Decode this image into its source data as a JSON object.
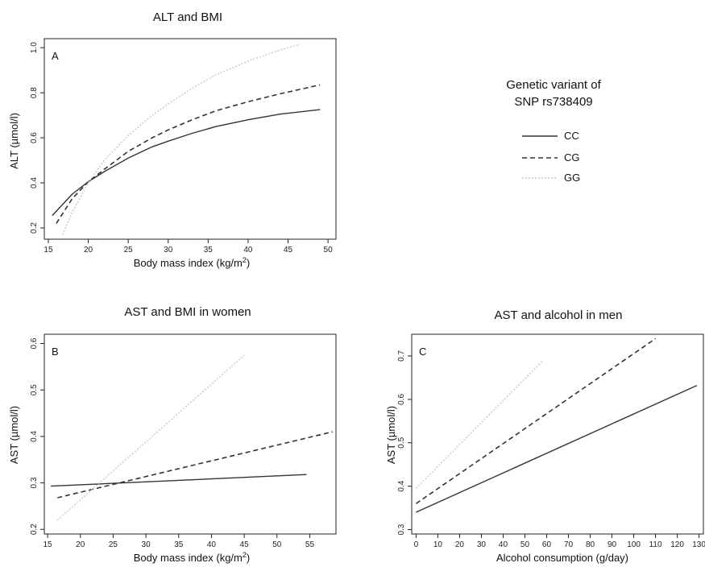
{
  "legend": {
    "title_line1": "Genetic variant of",
    "title_line2": "SNP rs738409",
    "entries": [
      {
        "label": "CC",
        "color": "#333333",
        "dash": "solid",
        "width": 1.4
      },
      {
        "label": "CG",
        "color": "#333333",
        "dash": "dashed",
        "width": 1.6
      },
      {
        "label": "GG",
        "color": "#c8c8c8",
        "dash": "dotted",
        "width": 1.4
      }
    ]
  },
  "chart_data": [
    {
      "type": "line",
      "panel_label": "A",
      "title": "ALT and BMI",
      "xlabel": "Body mass index (kg/m",
      "xlabel_sup": "2",
      "xlabel_tail": ")",
      "ylabel": "ALT (µmol/l)",
      "xlim": [
        14.5,
        51
      ],
      "ylim": [
        0.15,
        1.04
      ],
      "xticks": [
        15,
        20,
        25,
        30,
        35,
        40,
        45,
        50
      ],
      "yticks": [
        0.2,
        0.4,
        0.6,
        0.8,
        1.0
      ],
      "ytick_labels": [
        "0.2",
        "0.4",
        "0.6",
        "0.8",
        "1.0"
      ],
      "series": [
        {
          "name": "CC",
          "x": [
            15.5,
            18,
            20,
            22,
            25,
            28,
            30,
            33,
            36,
            40,
            44,
            49
          ],
          "y": [
            0.255,
            0.35,
            0.405,
            0.45,
            0.51,
            0.56,
            0.585,
            0.62,
            0.65,
            0.68,
            0.705,
            0.725
          ]
        },
        {
          "name": "CG",
          "x": [
            16,
            18,
            20,
            22,
            25,
            28,
            30,
            33,
            36,
            40,
            44,
            49
          ],
          "y": [
            0.22,
            0.33,
            0.405,
            0.46,
            0.54,
            0.6,
            0.635,
            0.68,
            0.72,
            0.76,
            0.795,
            0.835
          ]
        },
        {
          "name": "GG",
          "x": [
            16.8,
            18,
            20,
            22,
            25,
            28,
            30,
            33,
            36,
            40,
            44,
            46.5
          ],
          "y": [
            0.17,
            0.27,
            0.4,
            0.5,
            0.61,
            0.7,
            0.75,
            0.82,
            0.88,
            0.94,
            0.99,
            1.015
          ]
        }
      ]
    },
    {
      "type": "line",
      "panel_label": "B",
      "title": "AST and BMI in women",
      "xlabel": "Body mass index (kg/m",
      "xlabel_sup": "2",
      "xlabel_tail": ")",
      "ylabel": "AST (µmol/l)",
      "xlim": [
        14.5,
        59
      ],
      "ylim": [
        0.19,
        0.62
      ],
      "xticks": [
        15,
        20,
        25,
        30,
        35,
        40,
        45,
        50,
        55
      ],
      "yticks": [
        0.2,
        0.3,
        0.4,
        0.5,
        0.6
      ],
      "ytick_labels": [
        "0.2",
        "0.3",
        "0.4",
        "0.5",
        "0.6"
      ],
      "series": [
        {
          "name": "CC",
          "x": [
            15.5,
            54.5
          ],
          "y": [
            0.293,
            0.318
          ]
        },
        {
          "name": "CG",
          "x": [
            16.5,
            58.5
          ],
          "y": [
            0.268,
            0.41
          ]
        },
        {
          "name": "GG",
          "x": [
            16.5,
            45
          ],
          "y": [
            0.22,
            0.575
          ]
        }
      ]
    },
    {
      "type": "line",
      "panel_label": "C",
      "title": "AST and alcohol in men",
      "xlabel": "Alcohol consumption (g/day)",
      "xlabel_sup": "",
      "xlabel_tail": "",
      "ylabel": "AST (µmol/l)",
      "xlim": [
        -2,
        132
      ],
      "ylim": [
        0.29,
        0.75
      ],
      "xticks": [
        0,
        10,
        20,
        30,
        40,
        50,
        60,
        70,
        80,
        90,
        100,
        110,
        120,
        130
      ],
      "yticks": [
        0.3,
        0.4,
        0.5,
        0.6,
        0.7
      ],
      "ytick_labels": [
        "0.3",
        "0.4",
        "0.5",
        "0.6",
        "0.7"
      ],
      "series": [
        {
          "name": "CC",
          "x": [
            0,
            129
          ],
          "y": [
            0.34,
            0.632
          ]
        },
        {
          "name": "CG",
          "x": [
            0,
            110
          ],
          "y": [
            0.36,
            0.74
          ]
        },
        {
          "name": "GG",
          "x": [
            0,
            58
          ],
          "y": [
            0.395,
            0.688
          ]
        }
      ]
    }
  ]
}
